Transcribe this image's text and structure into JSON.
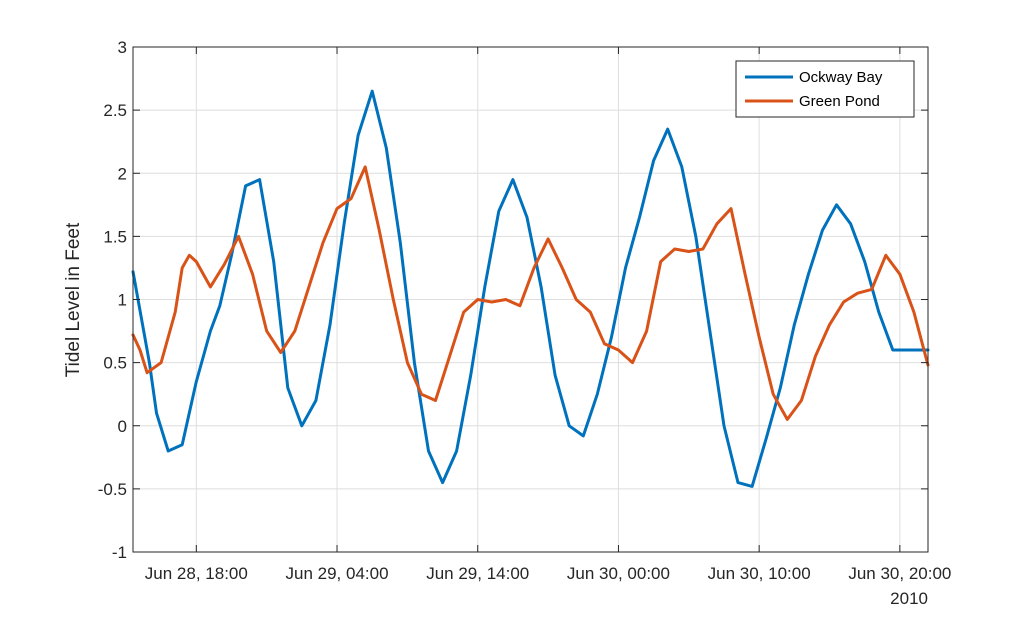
{
  "chart_data": {
    "type": "line",
    "ylabel": "Tidel Level in Feet",
    "xlabel": "",
    "ylim": [
      -1,
      3
    ],
    "yticks": [
      -1,
      -0.5,
      0,
      0.5,
      1,
      1.5,
      2,
      2.5,
      3
    ],
    "ytick_labels": [
      "-1",
      "-0.5",
      "0",
      "0.5",
      "1",
      "1.5",
      "2",
      "2.5",
      "3"
    ],
    "xlim": [
      "2010-06-28T13:30",
      "2010-06-30T22:00"
    ],
    "xticks": [
      "2010-06-28T18:00",
      "2010-06-29T04:00",
      "2010-06-29T14:00",
      "2010-06-30T00:00",
      "2010-06-30T10:00",
      "2010-06-30T20:00"
    ],
    "xtick_labels": [
      "Jun 28, 18:00",
      "Jun 29, 04:00",
      "Jun 29, 14:00",
      "Jun 30, 00:00",
      "Jun 30, 10:00",
      "Jun 30, 20:00"
    ],
    "x_secondary_label": "2010",
    "grid": true,
    "legend_position": "top-right",
    "series": [
      {
        "name": "Ockway Bay",
        "color": "#0072BD",
        "x": [
          "2010-06-28T13:30",
          "2010-06-28T14:40",
          "2010-06-28T15:10",
          "2010-06-28T16:00",
          "2010-06-28T17:00",
          "2010-06-28T18:00",
          "2010-06-28T19:00",
          "2010-06-28T19:40",
          "2010-06-28T20:30",
          "2010-06-28T21:30",
          "2010-06-28T22:30",
          "2010-06-28T23:30",
          "2010-06-29T00:30",
          "2010-06-29T01:30",
          "2010-06-29T02:30",
          "2010-06-29T03:30",
          "2010-06-29T04:30",
          "2010-06-29T05:30",
          "2010-06-29T06:30",
          "2010-06-29T07:30",
          "2010-06-29T08:30",
          "2010-06-29T09:30",
          "2010-06-29T10:30",
          "2010-06-29T11:30",
          "2010-06-29T12:30",
          "2010-06-29T13:30",
          "2010-06-29T14:30",
          "2010-06-29T15:30",
          "2010-06-29T16:30",
          "2010-06-29T17:30",
          "2010-06-29T18:30",
          "2010-06-29T19:30",
          "2010-06-29T20:30",
          "2010-06-29T21:30",
          "2010-06-29T22:30",
          "2010-06-29T23:30",
          "2010-06-30T00:30",
          "2010-06-30T01:30",
          "2010-06-30T02:30",
          "2010-06-30T03:30",
          "2010-06-30T04:30",
          "2010-06-30T05:30",
          "2010-06-30T06:30",
          "2010-06-30T07:30",
          "2010-06-30T08:30",
          "2010-06-30T09:30",
          "2010-06-30T10:30",
          "2010-06-30T11:30",
          "2010-06-30T12:30",
          "2010-06-30T13:30",
          "2010-06-30T14:30",
          "2010-06-30T15:30",
          "2010-06-30T16:30",
          "2010-06-30T17:30",
          "2010-06-30T18:30",
          "2010-06-30T19:30",
          "2010-06-30T20:30",
          "2010-06-30T21:30",
          "2010-06-30T22:00"
        ],
        "y": [
          1.22,
          0.5,
          0.1,
          -0.2,
          -0.15,
          0.35,
          0.75,
          0.95,
          1.35,
          1.9,
          1.95,
          1.3,
          0.3,
          0.0,
          0.2,
          0.8,
          1.6,
          2.3,
          2.65,
          2.2,
          1.45,
          0.5,
          -0.2,
          -0.45,
          -0.2,
          0.4,
          1.1,
          1.7,
          1.95,
          1.65,
          1.1,
          0.4,
          0.0,
          -0.08,
          0.25,
          0.7,
          1.25,
          1.65,
          2.1,
          2.35,
          2.05,
          1.5,
          0.75,
          0.0,
          -0.45,
          -0.48,
          -0.1,
          0.3,
          0.8,
          1.2,
          1.55,
          1.75,
          1.6,
          1.3,
          0.9,
          0.6,
          0.6,
          0.6,
          0.6
        ],
        "markers": false
      },
      {
        "name": "Green Pond",
        "color": "#D95319",
        "x": [
          "2010-06-28T13:30",
          "2010-06-28T14:00",
          "2010-06-28T14:30",
          "2010-06-28T15:30",
          "2010-06-28T16:30",
          "2010-06-28T17:00",
          "2010-06-28T17:30",
          "2010-06-28T18:00",
          "2010-06-28T19:00",
          "2010-06-28T20:00",
          "2010-06-28T21:00",
          "2010-06-28T22:00",
          "2010-06-28T23:00",
          "2010-06-29T00:00",
          "2010-06-29T01:00",
          "2010-06-29T02:00",
          "2010-06-29T03:00",
          "2010-06-29T04:00",
          "2010-06-29T05:00",
          "2010-06-29T06:00",
          "2010-06-29T07:00",
          "2010-06-29T08:00",
          "2010-06-29T09:00",
          "2010-06-29T10:00",
          "2010-06-29T11:00",
          "2010-06-29T12:00",
          "2010-06-29T13:00",
          "2010-06-29T14:00",
          "2010-06-29T15:00",
          "2010-06-29T16:00",
          "2010-06-29T17:00",
          "2010-06-29T18:00",
          "2010-06-29T19:00",
          "2010-06-29T20:00",
          "2010-06-29T21:00",
          "2010-06-29T22:00",
          "2010-06-29T23:00",
          "2010-06-30T00:00",
          "2010-06-30T01:00",
          "2010-06-30T02:00",
          "2010-06-30T03:00",
          "2010-06-30T04:00",
          "2010-06-30T05:00",
          "2010-06-30T06:00",
          "2010-06-30T07:00",
          "2010-06-30T08:00",
          "2010-06-30T09:00",
          "2010-06-30T10:00",
          "2010-06-30T11:00",
          "2010-06-30T12:00",
          "2010-06-30T13:00",
          "2010-06-30T14:00",
          "2010-06-30T15:00",
          "2010-06-30T16:00",
          "2010-06-30T17:00",
          "2010-06-30T18:00",
          "2010-06-30T19:00",
          "2010-06-30T20:00",
          "2010-06-30T21:00",
          "2010-06-30T22:00"
        ],
        "y": [
          0.72,
          0.6,
          0.42,
          0.5,
          0.9,
          1.25,
          1.35,
          1.3,
          1.1,
          1.28,
          1.5,
          1.2,
          0.75,
          0.58,
          0.75,
          1.1,
          1.45,
          1.72,
          1.8,
          2.05,
          1.55,
          1.0,
          0.5,
          0.25,
          0.2,
          0.55,
          0.9,
          1.0,
          0.98,
          1.0,
          0.95,
          1.25,
          1.48,
          1.25,
          1.0,
          0.9,
          0.65,
          0.6,
          0.5,
          0.75,
          1.3,
          1.4,
          1.38,
          1.4,
          1.6,
          1.72,
          1.2,
          0.7,
          0.25,
          0.05,
          0.2,
          0.55,
          0.8,
          0.98,
          1.05,
          1.08,
          1.35,
          1.2,
          0.9,
          0.48
        ],
        "markers": false
      }
    ]
  }
}
